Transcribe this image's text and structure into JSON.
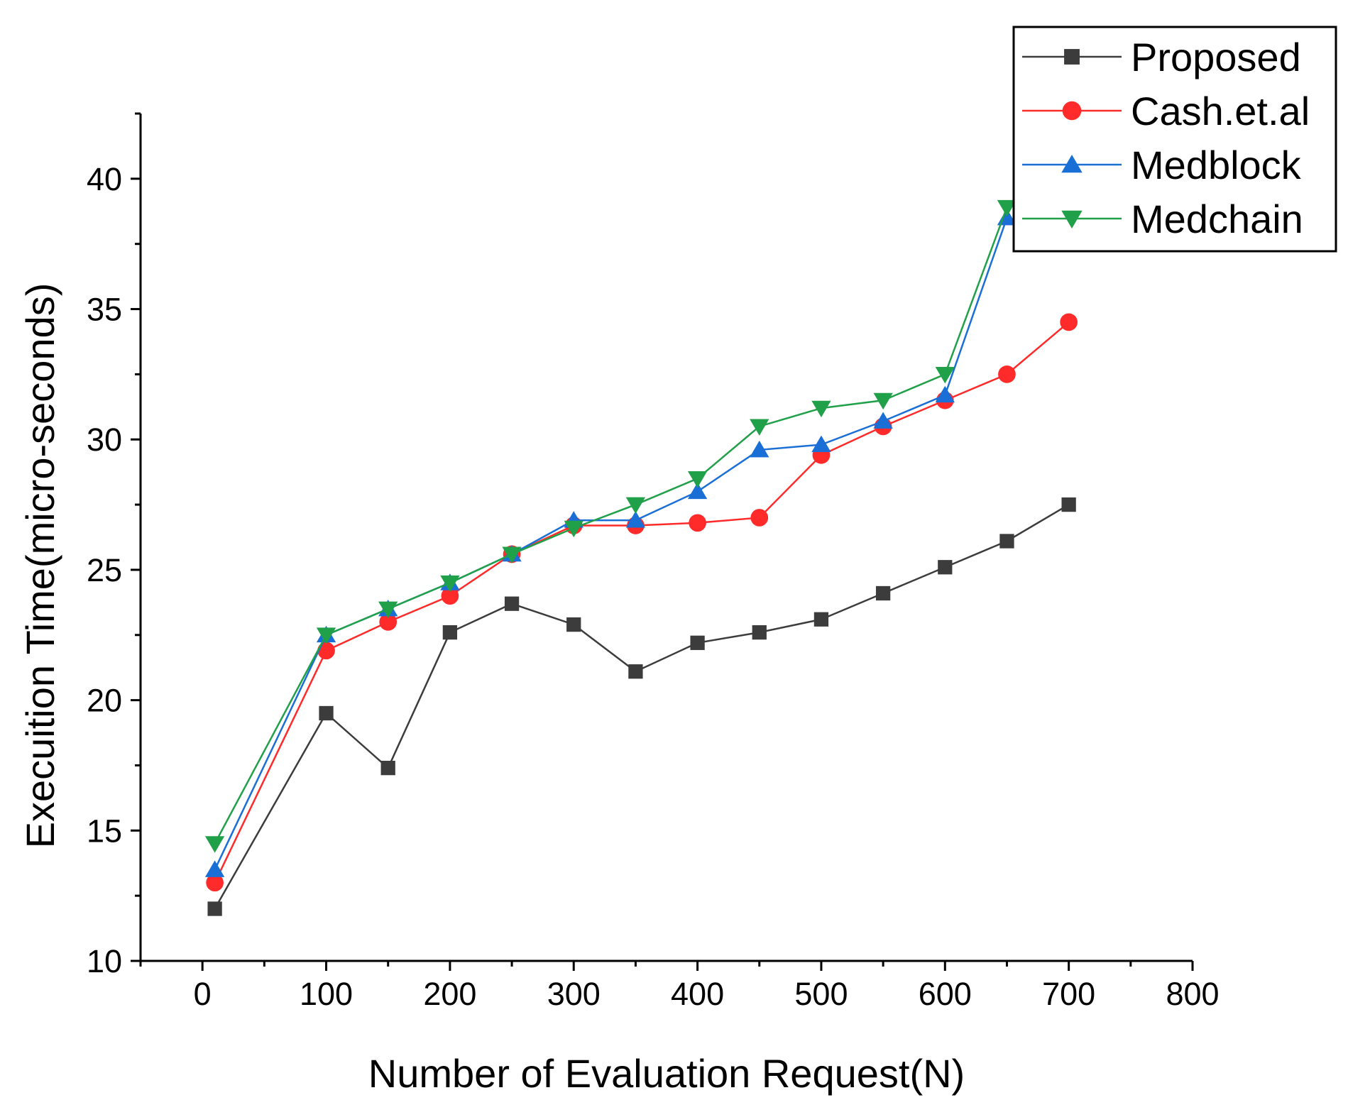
{
  "chart_data": {
    "type": "line",
    "title": "",
    "xlabel": "Number of Evaluation Request(N)",
    "ylabel": "Execuition Time(micro-seconds)",
    "xlim": [
      -50,
      800
    ],
    "ylim": [
      10,
      42.5
    ],
    "xticks": [
      0,
      100,
      200,
      300,
      400,
      500,
      600,
      700,
      800
    ],
    "yticks": [
      10,
      15,
      20,
      25,
      30,
      35,
      40
    ],
    "grid": false,
    "legend_position": "top-right",
    "series": [
      {
        "name": "Proposed",
        "color": "#3c3c3c",
        "marker": "square",
        "x": [
          10,
          100,
          150,
          200,
          250,
          300,
          350,
          400,
          450,
          500,
          550,
          600,
          650,
          700
        ],
        "values": [
          12.0,
          19.5,
          17.4,
          22.6,
          23.7,
          22.9,
          21.1,
          22.2,
          22.6,
          23.1,
          24.1,
          25.1,
          26.1,
          27.5
        ]
      },
      {
        "name": "Cash.et.al",
        "color": "#ff2a2a",
        "marker": "circle",
        "x": [
          10,
          100,
          150,
          200,
          250,
          300,
          350,
          400,
          450,
          500,
          550,
          600,
          650,
          700
        ],
        "values": [
          13.0,
          21.9,
          23.0,
          24.0,
          25.6,
          26.7,
          26.7,
          26.8,
          27.0,
          29.4,
          30.5,
          31.5,
          32.5,
          34.5
        ]
      },
      {
        "name": "Medblock",
        "color": "#1a6fd6",
        "marker": "triangle-up",
        "x": [
          10,
          100,
          150,
          200,
          250,
          300,
          350,
          400,
          450,
          500,
          550,
          600,
          650
        ],
        "values": [
          13.5,
          22.5,
          23.5,
          24.5,
          25.6,
          26.9,
          26.9,
          28.0,
          29.6,
          29.8,
          30.7,
          31.7,
          38.5
        ]
      },
      {
        "name": "Medchain",
        "color": "#21a04a",
        "marker": "triangle-down",
        "x": [
          10,
          100,
          150,
          200,
          250,
          300,
          350,
          400,
          450,
          500,
          550,
          600,
          650
        ],
        "values": [
          14.5,
          22.5,
          23.5,
          24.5,
          25.6,
          26.6,
          27.5,
          28.5,
          30.5,
          31.2,
          31.5,
          32.5,
          38.9
        ]
      }
    ]
  }
}
